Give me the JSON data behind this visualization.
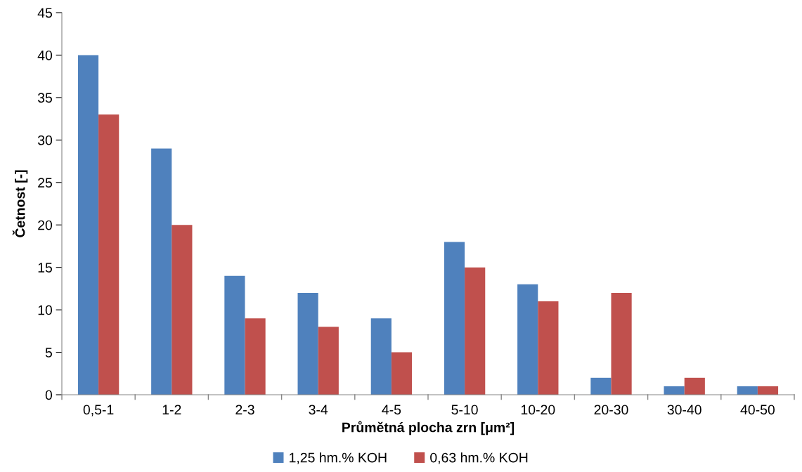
{
  "chart_data": {
    "type": "bar",
    "xlabel": "Průmětná plocha zrn [μm²]",
    "ylabel": "Četnost [-]",
    "categories": [
      "0,5-1",
      "1-2",
      "2-3",
      "3-4",
      "4-5",
      "5-10",
      "10-20",
      "20-30",
      "30-40",
      "40-50"
    ],
    "series": [
      {
        "name": "1,25 hm.% KOH",
        "color": "#4f81bd",
        "values": [
          40,
          29,
          14,
          12,
          9,
          18,
          13,
          2,
          1,
          1
        ]
      },
      {
        "name": "0,63 hm.% KOH",
        "color": "#c0504d",
        "values": [
          33,
          20,
          9,
          8,
          5,
          15,
          11,
          12,
          2,
          1
        ]
      }
    ],
    "ylim": [
      0,
      45
    ],
    "yticks": [
      0,
      5,
      10,
      15,
      20,
      25,
      30,
      35,
      40,
      45
    ],
    "grid": false,
    "legend": "bottom"
  }
}
